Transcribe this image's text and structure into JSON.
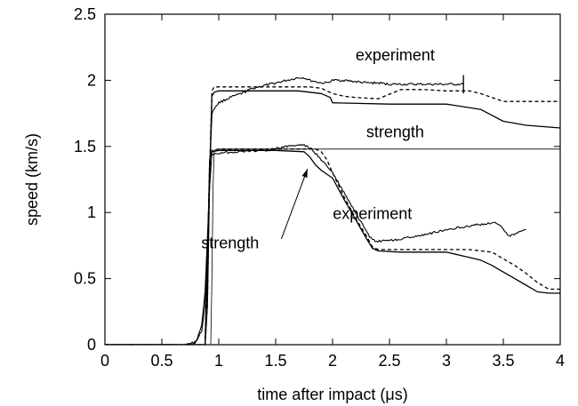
{
  "chart_data": {
    "type": "line",
    "title": "",
    "xlabel": "time after impact (μs)",
    "ylabel": "speed (km/s)",
    "xlim": [
      0,
      4
    ],
    "ylim": [
      0,
      2.5
    ],
    "xticks": [
      0,
      0.5,
      1,
      1.5,
      2,
      2.5,
      3,
      3.5,
      4
    ],
    "yticks": [
      0,
      0.5,
      1,
      1.5,
      2,
      2.5
    ],
    "xtick_labels": [
      "0",
      "0.5",
      "1",
      "1.5",
      "2",
      "2.5",
      "3",
      "3.5",
      "4"
    ],
    "ytick_labels": [
      "0",
      "0.5",
      "1",
      "1.5",
      "2",
      "2.5"
    ],
    "grid": false,
    "legend": "none",
    "series": [
      {
        "style": "noisy",
        "x": [
          0,
          0.7,
          0.8,
          0.85,
          0.88,
          0.9,
          0.92,
          0.94,
          0.97,
          1.0,
          1.1,
          1.2,
          1.3,
          1.4,
          1.5,
          1.6,
          1.7,
          1.75,
          1.8,
          1.85,
          1.9,
          1.95,
          2.0,
          2.1,
          2.2,
          2.3,
          2.4,
          2.5,
          2.6,
          2.7,
          2.8,
          2.9,
          3.0,
          3.1,
          3.15
        ],
        "y": [
          0,
          0,
          0.02,
          0.1,
          0.3,
          0.7,
          1.3,
          1.75,
          1.8,
          1.83,
          1.87,
          1.9,
          1.94,
          1.96,
          1.98,
          2.0,
          2.02,
          2.02,
          2.0,
          1.99,
          1.98,
          1.98,
          2.0,
          2.0,
          1.99,
          1.98,
          1.98,
          1.97,
          1.97,
          1.97,
          1.97,
          1.97,
          1.97,
          1.97,
          1.97
        ]
      },
      {
        "style": "solid",
        "x": [
          0,
          0.88,
          0.9,
          0.92,
          0.94,
          0.96,
          1.0,
          1.5,
          1.7,
          1.9,
          1.98,
          2.0,
          2.5,
          3.0,
          3.3,
          3.5,
          3.7,
          4.0
        ],
        "y": [
          0,
          0,
          0.3,
          1.3,
          1.88,
          1.91,
          1.92,
          1.92,
          1.92,
          1.9,
          1.87,
          1.83,
          1.82,
          1.82,
          1.78,
          1.69,
          1.66,
          1.64
        ]
      },
      {
        "style": "dashed",
        "x": [
          0,
          0.88,
          0.9,
          0.92,
          0.94,
          0.96,
          1.0,
          1.6,
          1.8,
          1.9,
          2.0,
          2.1,
          2.2,
          2.4,
          2.6,
          2.8,
          3.0,
          3.2,
          3.3,
          3.4,
          3.5,
          3.7,
          4.0
        ],
        "y": [
          0,
          0,
          0.3,
          1.3,
          1.92,
          1.95,
          1.95,
          1.95,
          1.95,
          1.94,
          1.9,
          1.88,
          1.87,
          1.86,
          1.93,
          1.93,
          1.92,
          1.92,
          1.9,
          1.87,
          1.84,
          1.84,
          1.84
        ]
      },
      {
        "style": "noisy",
        "x": [
          0,
          0.7,
          0.8,
          0.85,
          0.88,
          0.9,
          0.92,
          0.94,
          1.0,
          1.2,
          1.4,
          1.5,
          1.6,
          1.7,
          1.75,
          1.8,
          1.85,
          1.9,
          2.0,
          2.1,
          2.2,
          2.3,
          2.35,
          2.4,
          2.6,
          2.8,
          3.0,
          3.2,
          3.3,
          3.4,
          3.45,
          3.5,
          3.55,
          3.6,
          3.65,
          3.7
        ],
        "y": [
          0,
          0,
          0.02,
          0.15,
          0.4,
          0.8,
          1.2,
          1.44,
          1.45,
          1.46,
          1.47,
          1.48,
          1.5,
          1.51,
          1.51,
          1.49,
          1.45,
          1.4,
          1.3,
          1.15,
          1.0,
          0.85,
          0.79,
          0.78,
          0.8,
          0.83,
          0.87,
          0.9,
          0.91,
          0.92,
          0.92,
          0.87,
          0.82,
          0.84,
          0.86,
          0.87
        ]
      },
      {
        "style": "solid",
        "x": [
          0,
          0.88,
          0.9,
          0.92,
          0.94,
          1.0,
          1.5,
          1.75,
          1.8,
          1.85,
          1.9,
          2.0,
          2.1,
          2.2,
          2.3,
          2.35,
          2.4,
          2.6,
          2.8,
          3.0,
          3.2,
          3.3,
          3.4,
          3.5,
          3.6,
          3.7,
          3.8,
          3.9,
          4.0
        ],
        "y": [
          0,
          0,
          0.6,
          1.4,
          1.46,
          1.47,
          1.47,
          1.46,
          1.42,
          1.36,
          1.32,
          1.26,
          1.1,
          0.95,
          0.8,
          0.73,
          0.71,
          0.7,
          0.7,
          0.7,
          0.66,
          0.64,
          0.6,
          0.55,
          0.5,
          0.45,
          0.4,
          0.39,
          0.39
        ]
      },
      {
        "style": "dashed",
        "x": [
          0,
          0.88,
          0.9,
          0.92,
          0.94,
          1.0,
          1.5,
          1.8,
          1.85,
          1.9,
          1.95,
          2.0,
          2.1,
          2.2,
          2.3,
          2.35,
          2.4,
          2.8,
          3.0,
          3.2,
          3.4,
          3.5,
          3.6,
          3.7,
          3.8,
          3.9,
          4.0
        ],
        "y": [
          0,
          0,
          0.6,
          1.4,
          1.47,
          1.48,
          1.48,
          1.48,
          1.48,
          1.46,
          1.4,
          1.3,
          1.12,
          0.96,
          0.82,
          0.74,
          0.72,
          0.72,
          0.72,
          0.72,
          0.7,
          0.65,
          0.6,
          0.54,
          0.47,
          0.42,
          0.42
        ]
      },
      {
        "style": "thin",
        "x": [
          0,
          0.93,
          0.94,
          0.95,
          0.96,
          1.0,
          4.0
        ],
        "y": [
          0,
          0,
          0.5,
          1.2,
          1.47,
          1.48,
          1.48
        ]
      }
    ],
    "annotations": [
      {
        "text": "experiment",
        "x": 2.55,
        "y": 2.15
      },
      {
        "text": "strength",
        "x": 2.55,
        "y": 1.57
      },
      {
        "text": "experiment",
        "x": 2.35,
        "y": 0.95
      },
      {
        "text": "strength",
        "x": 1.1,
        "y": 0.73
      }
    ],
    "arrow": {
      "from": [
        1.55,
        0.8
      ],
      "to": [
        1.78,
        1.33
      ]
    }
  }
}
